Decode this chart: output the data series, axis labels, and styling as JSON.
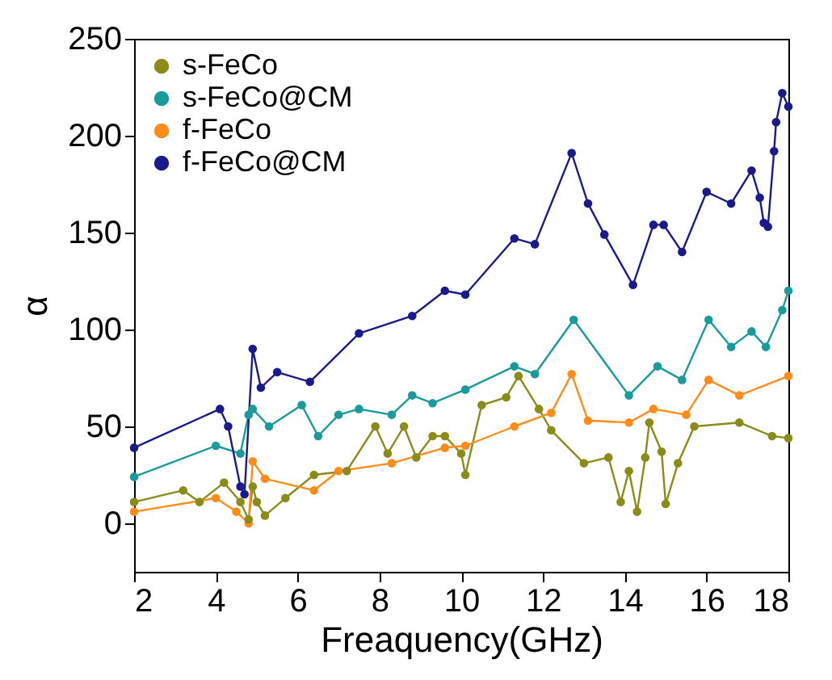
{
  "chart_data": {
    "type": "line",
    "xlabel": "Freaquency(GHz)",
    "ylabel": "α",
    "xlim": [
      2,
      18
    ],
    "xticks": [
      2,
      4,
      6,
      8,
      10,
      12,
      14,
      16,
      18
    ],
    "ylim": [
      -25,
      250
    ],
    "yticks": [
      0,
      50,
      100,
      150,
      200,
      250
    ],
    "grid": false,
    "legend": "top left",
    "marker": "circle",
    "line_style": "solid",
    "series": [
      {
        "name": "s-FeCo",
        "color": "#8b8b1a",
        "x": [
          2,
          3.2,
          3.6,
          4.2,
          4.6,
          4.8,
          4.9,
          5.0,
          5.2,
          5.7,
          6.4,
          7.2,
          7.9,
          8.2,
          8.6,
          8.9,
          9.3,
          9.6,
          10.0,
          10.1,
          10.5,
          11.1,
          11.4,
          11.9,
          12.2,
          13.0,
          13.6,
          13.9,
          14.1,
          14.3,
          14.5,
          14.6,
          14.9,
          15.0,
          15.3,
          15.7,
          16.8,
          17.6,
          18
        ],
        "values": [
          11,
          17,
          11,
          21,
          11,
          2,
          19,
          11,
          4,
          13,
          25,
          27,
          50,
          36,
          50,
          34,
          45,
          45,
          36,
          25,
          61,
          65,
          76,
          59,
          48,
          31,
          34,
          11,
          27,
          6,
          34,
          52,
          37,
          10,
          31,
          50,
          52,
          45,
          44
        ]
      },
      {
        "name": "s-FeCo@CM",
        "color": "#1a9a9a",
        "x": [
          2,
          4.0,
          4.6,
          4.8,
          4.9,
          5.3,
          6.1,
          6.5,
          7.0,
          7.5,
          8.3,
          8.8,
          9.3,
          10.1,
          11.3,
          11.8,
          12.75,
          14.1,
          14.8,
          15.4,
          16.05,
          16.6,
          17.1,
          17.45,
          17.85,
          18
        ],
        "values": [
          24,
          40,
          36,
          56,
          59,
          50,
          61,
          45,
          56,
          59,
          56,
          66,
          62,
          69,
          81,
          77,
          105,
          66,
          81,
          74,
          105,
          91,
          99,
          91,
          110,
          120
        ]
      },
      {
        "name": "f-FeCo",
        "color": "#ff8c1a",
        "x": [
          2,
          4.0,
          4.5,
          4.8,
          4.9,
          5.2,
          6.4,
          7.0,
          8.3,
          9.6,
          10.1,
          11.3,
          12.2,
          12.7,
          13.1,
          14.1,
          14.7,
          15.5,
          16.05,
          16.8,
          18
        ],
        "values": [
          6,
          13,
          6,
          0,
          32,
          23,
          17,
          27,
          31,
          39,
          40,
          50,
          57,
          77,
          53,
          52,
          59,
          56,
          74,
          66,
          76
        ]
      },
      {
        "name": "f-FeCo@CM",
        "color": "#1a1a8c",
        "x": [
          2,
          4.1,
          4.3,
          4.6,
          4.7,
          4.9,
          5.1,
          5.5,
          6.3,
          7.5,
          8.8,
          9.6,
          10.1,
          11.3,
          11.8,
          12.7,
          13.1,
          13.5,
          14.2,
          14.7,
          14.95,
          15.4,
          16.0,
          16.6,
          17.1,
          17.3,
          17.4,
          17.5,
          17.65,
          17.7,
          17.85,
          18
        ],
        "values": [
          39,
          59,
          50,
          19,
          15,
          90,
          70,
          78,
          73,
          98,
          107,
          120,
          118,
          147,
          144,
          191,
          165,
          149,
          123,
          154,
          154,
          140,
          171,
          165,
          182,
          168,
          155,
          153,
          192,
          207,
          222,
          215
        ]
      }
    ]
  }
}
